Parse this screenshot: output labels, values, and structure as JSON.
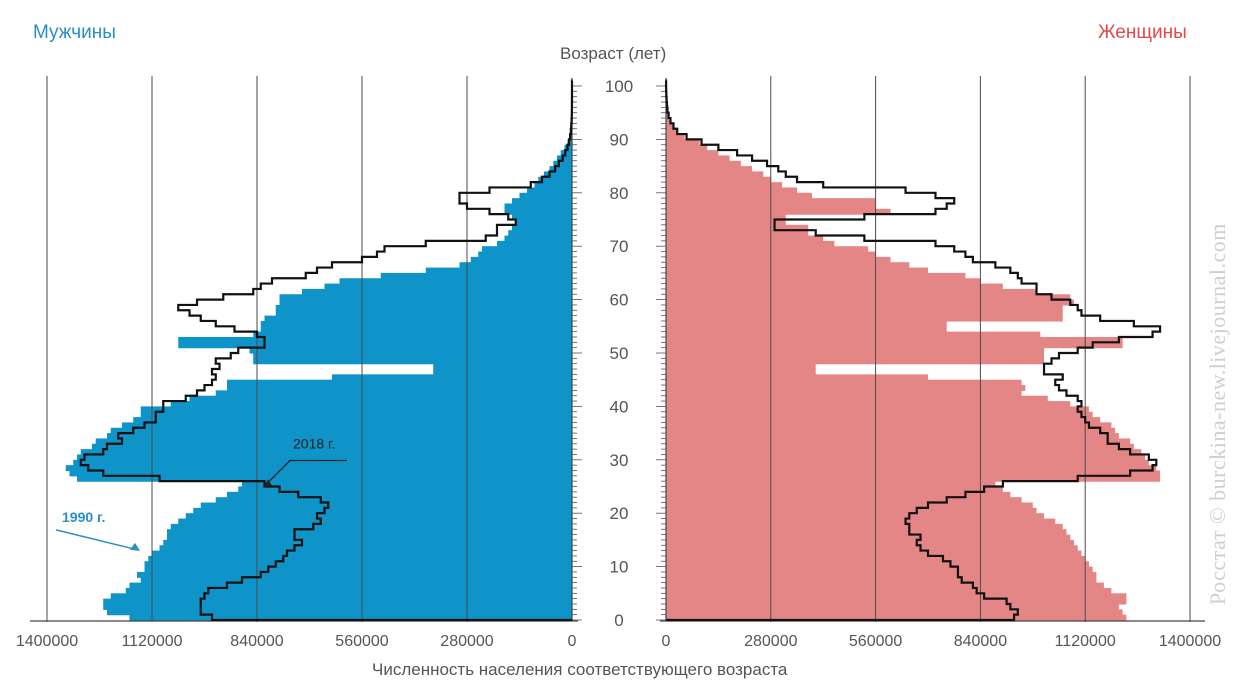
{
  "chart_data": {
    "type": "bar",
    "subtype": "population-pyramid",
    "men_label": "Мужчины",
    "women_label": "Женщины",
    "age_axis_label": "Возраст (лет)",
    "xlabel": "Численность населения соответствующего возраста",
    "watermark": "Росстат © burckina-new.livejournal.com",
    "men_xticks": [
      "1400000",
      "1120000",
      "840000",
      "560000",
      "280000",
      "0"
    ],
    "women_xticks": [
      "0",
      "280000",
      "560000",
      "840000",
      "1120000",
      "1400000"
    ],
    "xlim": [
      0,
      1400000
    ],
    "age_ticks": [
      "0",
      "10",
      "20",
      "30",
      "40",
      "50",
      "60",
      "70",
      "80",
      "90",
      "100"
    ],
    "ylim": [
      0,
      100
    ],
    "grid": true,
    "colors": {
      "men_bars": "#0e94c8",
      "women_bars": "#e58686",
      "outline": "#111111",
      "men_title": "#2a8fc5",
      "women_title": "#e04a4a"
    },
    "annotations": [
      {
        "text": "1990 г.",
        "side": "men",
        "age": 15,
        "color": "#2a8fc5"
      },
      {
        "text": "2018 г.",
        "side": "men",
        "age": 25,
        "color": "#222222"
      }
    ],
    "series": [
      {
        "name": "1990 г.",
        "render": "bars",
        "ages": [
          0,
          1,
          2,
          3,
          4,
          5,
          6,
          7,
          8,
          9,
          10,
          11,
          12,
          13,
          14,
          15,
          16,
          17,
          18,
          19,
          20,
          21,
          22,
          23,
          24,
          25,
          26,
          27,
          28,
          29,
          30,
          31,
          32,
          33,
          34,
          35,
          36,
          37,
          38,
          39,
          40,
          41,
          42,
          43,
          44,
          45,
          46,
          47,
          48,
          49,
          50,
          51,
          52,
          53,
          54,
          55,
          56,
          57,
          58,
          59,
          60,
          61,
          62,
          63,
          64,
          65,
          66,
          67,
          68,
          69,
          70,
          71,
          72,
          73,
          74,
          75,
          76,
          77,
          78,
          79,
          80,
          81,
          82,
          83,
          84,
          85,
          86,
          87,
          88,
          89,
          90,
          91,
          92,
          93,
          94,
          95,
          96,
          97,
          98,
          99,
          100
        ],
        "men": [
          1180000,
          1240000,
          1250000,
          1250000,
          1230000,
          1190000,
          1180000,
          1150000,
          1160000,
          1140000,
          1140000,
          1130000,
          1120000,
          1100000,
          1090000,
          1080000,
          1080000,
          1070000,
          1050000,
          1030000,
          1010000,
          990000,
          950000,
          920000,
          890000,
          880000,
          1320000,
          1340000,
          1350000,
          1330000,
          1320000,
          1310000,
          1280000,
          1270000,
          1240000,
          1230000,
          1200000,
          1170000,
          1150000,
          1150000,
          1070000,
          1020000,
          950000,
          920000,
          920000,
          640000,
          370000,
          370000,
          850000,
          850000,
          860000,
          1050000,
          1050000,
          850000,
          830000,
          830000,
          820000,
          790000,
          790000,
          780000,
          780000,
          720000,
          660000,
          620000,
          510000,
          390000,
          300000,
          270000,
          250000,
          240000,
          200000,
          180000,
          170000,
          160000,
          150000,
          160000,
          180000,
          180000,
          160000,
          140000,
          120000,
          100000,
          90000,
          75000,
          60000,
          50000,
          40000,
          30000,
          20000,
          12000,
          8000,
          5000,
          3000,
          2000,
          1000,
          500,
          300,
          200,
          100,
          50,
          30
        ],
        "women": [
          1230000,
          1220000,
          1210000,
          1230000,
          1230000,
          1190000,
          1170000,
          1150000,
          1150000,
          1140000,
          1130000,
          1120000,
          1110000,
          1100000,
          1090000,
          1080000,
          1070000,
          1060000,
          1040000,
          1010000,
          990000,
          980000,
          950000,
          920000,
          900000,
          880000,
          1320000,
          1320000,
          1310000,
          1290000,
          1280000,
          1270000,
          1250000,
          1240000,
          1210000,
          1200000,
          1190000,
          1160000,
          1140000,
          1130000,
          1080000,
          1020000,
          950000,
          960000,
          950000,
          700000,
          400000,
          400000,
          1010000,
          1010000,
          1010000,
          1220000,
          1220000,
          1000000,
          750000,
          750000,
          1060000,
          1060000,
          1060000,
          1090000,
          1080000,
          990000,
          900000,
          840000,
          800000,
          700000,
          650000,
          600000,
          560000,
          540000,
          450000,
          420000,
          380000,
          380000,
          320000,
          320000,
          600000,
          560000,
          560000,
          390000,
          350000,
          310000,
          280000,
          260000,
          230000,
          200000,
          170000,
          140000,
          110000,
          90000,
          50000,
          30000,
          20000,
          10000,
          6000,
          3000,
          2000,
          1000,
          500,
          300,
          100
        ]
      },
      {
        "name": "2018 г.",
        "render": "outline",
        "ages": [
          0,
          1,
          2,
          3,
          4,
          5,
          6,
          7,
          8,
          9,
          10,
          11,
          12,
          13,
          14,
          15,
          16,
          17,
          18,
          19,
          20,
          21,
          22,
          23,
          24,
          25,
          26,
          27,
          28,
          29,
          30,
          31,
          32,
          33,
          34,
          35,
          36,
          37,
          38,
          39,
          40,
          41,
          42,
          43,
          44,
          45,
          46,
          47,
          48,
          49,
          50,
          51,
          52,
          53,
          54,
          55,
          56,
          57,
          58,
          59,
          60,
          61,
          62,
          63,
          64,
          65,
          66,
          67,
          68,
          69,
          70,
          71,
          72,
          73,
          74,
          75,
          76,
          77,
          78,
          79,
          80,
          81,
          82,
          83,
          84,
          85,
          86,
          87,
          88,
          89,
          90,
          91,
          92,
          93,
          94,
          95,
          96,
          97,
          98,
          99,
          100
        ],
        "men": [
          960000,
          990000,
          990000,
          990000,
          980000,
          970000,
          920000,
          880000,
          830000,
          810000,
          790000,
          770000,
          760000,
          740000,
          720000,
          740000,
          740000,
          690000,
          670000,
          680000,
          660000,
          650000,
          670000,
          730000,
          780000,
          820000,
          1100000,
          1250000,
          1290000,
          1310000,
          1300000,
          1250000,
          1240000,
          1200000,
          1210000,
          1170000,
          1140000,
          1110000,
          1110000,
          1090000,
          1090000,
          1030000,
          1000000,
          980000,
          960000,
          950000,
          960000,
          940000,
          950000,
          910000,
          890000,
          820000,
          820000,
          840000,
          900000,
          950000,
          990000,
          1020000,
          1050000,
          1000000,
          930000,
          850000,
          830000,
          800000,
          710000,
          680000,
          640000,
          560000,
          520000,
          500000,
          390000,
          230000,
          200000,
          200000,
          150000,
          170000,
          220000,
          280000,
          300000,
          300000,
          220000,
          110000,
          80000,
          60000,
          45000,
          35000,
          25000,
          18000,
          12000,
          8000,
          5000,
          3000,
          2000,
          1000,
          500,
          300,
          200,
          100,
          50,
          20,
          10
        ],
        "women": [
          930000,
          940000,
          920000,
          910000,
          850000,
          830000,
          820000,
          790000,
          780000,
          780000,
          760000,
          740000,
          700000,
          680000,
          670000,
          680000,
          650000,
          650000,
          640000,
          650000,
          670000,
          700000,
          750000,
          800000,
          850000,
          900000,
          1100000,
          1240000,
          1300000,
          1310000,
          1290000,
          1240000,
          1210000,
          1180000,
          1180000,
          1160000,
          1130000,
          1120000,
          1110000,
          1100000,
          1110000,
          1100000,
          1070000,
          1050000,
          1040000,
          1060000,
          1010000,
          1010000,
          1030000,
          1050000,
          1100000,
          1140000,
          1210000,
          1300000,
          1320000,
          1250000,
          1160000,
          1110000,
          1100000,
          1080000,
          1030000,
          990000,
          990000,
          950000,
          940000,
          920000,
          880000,
          820000,
          800000,
          770000,
          720000,
          530000,
          400000,
          290000,
          290000,
          530000,
          720000,
          750000,
          770000,
          720000,
          640000,
          420000,
          350000,
          320000,
          300000,
          270000,
          230000,
          190000,
          140000,
          95000,
          55000,
          30000,
          20000,
          12000,
          7000,
          4000,
          2500,
          1500,
          800,
          400,
          200
        ]
      }
    ]
  }
}
